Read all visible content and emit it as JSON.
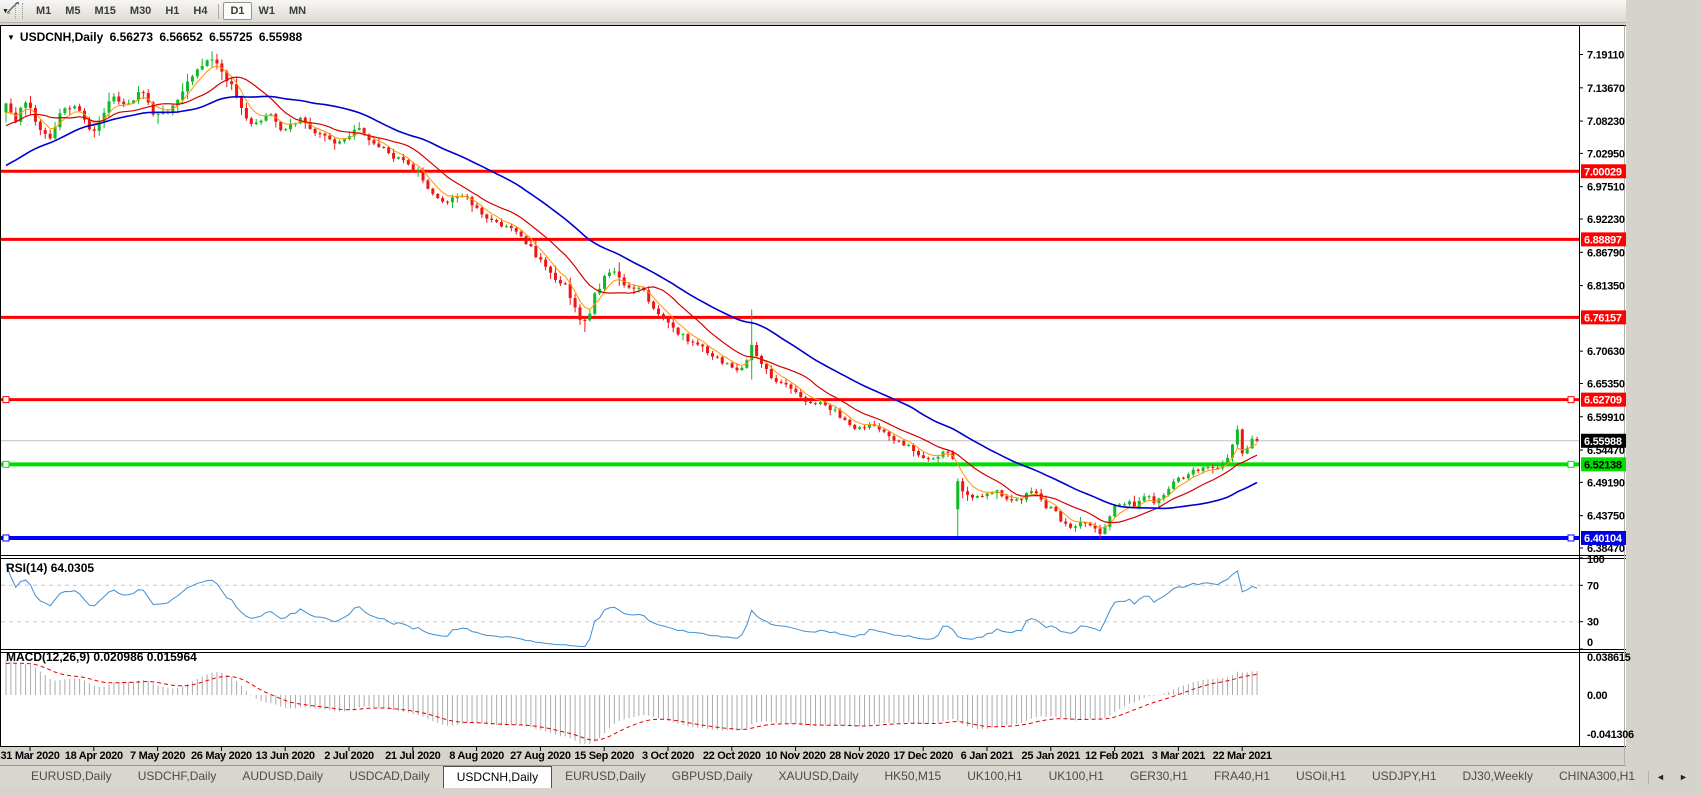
{
  "toolbar": {
    "timeframes": [
      "M1",
      "M5",
      "M15",
      "M30",
      "H1",
      "H4",
      "D1",
      "W1",
      "MN"
    ],
    "active": "D1",
    "chart_tool_icon": "chart-cursor-icon",
    "dropdown_caret": "▼"
  },
  "chart": {
    "symbol_title": "USDCNH,Daily",
    "title_arrow": "▼",
    "ohlc": {
      "open": "6.56273",
      "high": "6.56652",
      "low": "6.55725",
      "close": "6.55988"
    }
  },
  "price_axis": {
    "ticks": [
      "7.19110",
      "7.13670",
      "7.08230",
      "7.02950",
      "6.97510",
      "6.92230",
      "6.86790",
      "6.81350",
      "6.70630",
      "6.65350",
      "6.59910",
      "6.54470",
      "6.49190",
      "6.43750",
      "6.38470"
    ]
  },
  "hlines": [
    {
      "price": 7.00029,
      "label": "7.00029",
      "color": "#ff0000",
      "width": 3,
      "label_bg": "#ff0000",
      "label_fg": "#ffffff",
      "handles": false
    },
    {
      "price": 6.88897,
      "label": "6.88897",
      "color": "#ff0000",
      "width": 3,
      "label_bg": "#ff0000",
      "label_fg": "#ffffff",
      "handles": false
    },
    {
      "price": 6.76157,
      "label": "6.76157",
      "color": "#ff0000",
      "width": 3,
      "label_bg": "#ff0000",
      "label_fg": "#ffffff",
      "handles": false
    },
    {
      "price": 6.62709,
      "label": "6.62709",
      "color": "#ff0000",
      "width": 3,
      "label_bg": "#ff0000",
      "label_fg": "#ffffff",
      "handles": true
    },
    {
      "price": 6.52138,
      "label": "6.52138",
      "color": "#00dd00",
      "width": 4,
      "label_bg": "#00dd00",
      "label_fg": "#000000",
      "handles": true
    },
    {
      "price": 6.40104,
      "label": "6.40104",
      "color": "#0000ff",
      "width": 4,
      "label_bg": "#0000e0",
      "label_fg": "#ffffff",
      "handles": true
    }
  ],
  "current_price": {
    "value": 6.55988,
    "label": "6.55988",
    "line_color": "#c0c0c0",
    "label_bg": "#000000",
    "label_fg": "#ffffff"
  },
  "chart_data": {
    "type": "candlestick",
    "symbol": "USDCNH",
    "timeframe": "Daily",
    "seed": 7,
    "price_min": 6.37484,
    "price_max": 7.2377,
    "up_color": "#0fba26",
    "down_color": "#f01414",
    "close_anchors": [
      [
        -60,
        6.93
      ],
      [
        -45,
        6.95
      ],
      [
        -30,
        6.94
      ],
      [
        -20,
        6.97
      ],
      [
        -12,
        7.04
      ],
      [
        -6,
        7.075
      ],
      [
        -1,
        7.1
      ],
      [
        0,
        7.105
      ],
      [
        2,
        7.088
      ],
      [
        4,
        7.118
      ],
      [
        6,
        7.078
      ],
      [
        9,
        7.055
      ],
      [
        11,
        7.088
      ],
      [
        13,
        7.103
      ],
      [
        15,
        7.096
      ],
      [
        17,
        7.068
      ],
      [
        19,
        7.077
      ],
      [
        22,
        7.128
      ],
      [
        24,
        7.115
      ],
      [
        26,
        7.12
      ],
      [
        28,
        7.124
      ],
      [
        30,
        7.1
      ],
      [
        32,
        7.094
      ],
      [
        34,
        7.11
      ],
      [
        36,
        7.13
      ],
      [
        38,
        7.152
      ],
      [
        40,
        7.173
      ],
      [
        42,
        7.188
      ],
      [
        44,
        7.156
      ],
      [
        46,
        7.139
      ],
      [
        48,
        7.097
      ],
      [
        50,
        7.076
      ],
      [
        52,
        7.086
      ],
      [
        54,
        7.094
      ],
      [
        56,
        7.066
      ],
      [
        58,
        7.076
      ],
      [
        60,
        7.084
      ],
      [
        62,
        7.07
      ],
      [
        64,
        7.06
      ],
      [
        66,
        7.054
      ],
      [
        68,
        7.046
      ],
      [
        70,
        7.06
      ],
      [
        72,
        7.068
      ],
      [
        74,
        7.054
      ],
      [
        76,
        7.04
      ],
      [
        78,
        7.03
      ],
      [
        80,
        7.019
      ],
      [
        82,
        7.009
      ],
      [
        84,
        6.996
      ],
      [
        86,
        6.976
      ],
      [
        88,
        6.956
      ],
      [
        90,
        6.95
      ],
      [
        92,
        6.96
      ],
      [
        94,
        6.954
      ],
      [
        96,
        6.94
      ],
      [
        98,
        6.926
      ],
      [
        100,
        6.918
      ],
      [
        102,
        6.908
      ],
      [
        104,
        6.902
      ],
      [
        106,
        6.885
      ],
      [
        108,
        6.862
      ],
      [
        110,
        6.84
      ],
      [
        112,
        6.826
      ],
      [
        114,
        6.81
      ],
      [
        116,
        6.775
      ],
      [
        118,
        6.75
      ],
      [
        120,
        6.8
      ],
      [
        122,
        6.826
      ],
      [
        124,
        6.832
      ],
      [
        126,
        6.82
      ],
      [
        128,
        6.814
      ],
      [
        130,
        6.8
      ],
      [
        132,
        6.772
      ],
      [
        134,
        6.756
      ],
      [
        136,
        6.744
      ],
      [
        138,
        6.73
      ],
      [
        140,
        6.72
      ],
      [
        142,
        6.71
      ],
      [
        144,
        6.7
      ],
      [
        146,
        6.69
      ],
      [
        148,
        6.681
      ],
      [
        150,
        6.676
      ],
      [
        152,
        6.714
      ],
      [
        154,
        6.686
      ],
      [
        156,
        6.664
      ],
      [
        158,
        6.654
      ],
      [
        160,
        6.644
      ],
      [
        162,
        6.63
      ],
      [
        164,
        6.62
      ],
      [
        166,
        6.626
      ],
      [
        168,
        6.614
      ],
      [
        170,
        6.6
      ],
      [
        172,
        6.586
      ],
      [
        174,
        6.58
      ],
      [
        176,
        6.59
      ],
      [
        178,
        6.58
      ],
      [
        180,
        6.566
      ],
      [
        182,
        6.56
      ],
      [
        184,
        6.55
      ],
      [
        186,
        6.54
      ],
      [
        188,
        6.53
      ],
      [
        190,
        6.536
      ],
      [
        192,
        6.541
      ],
      [
        193,
        6.535
      ],
      [
        194,
        6.49
      ],
      [
        196,
        6.474
      ],
      [
        198,
        6.464
      ],
      [
        200,
        6.47
      ],
      [
        202,
        6.476
      ],
      [
        204,
        6.464
      ],
      [
        206,
        6.46
      ],
      [
        208,
        6.47
      ],
      [
        210,
        6.476
      ],
      [
        212,
        6.455
      ],
      [
        214,
        6.44
      ],
      [
        216,
        6.426
      ],
      [
        218,
        6.42
      ],
      [
        220,
        6.43
      ],
      [
        222,
        6.414
      ],
      [
        223,
        6.406
      ],
      [
        224,
        6.42
      ],
      [
        226,
        6.452
      ],
      [
        228,
        6.46
      ],
      [
        230,
        6.455
      ],
      [
        232,
        6.47
      ],
      [
        234,
        6.46
      ],
      [
        236,
        6.47
      ],
      [
        238,
        6.49
      ],
      [
        240,
        6.5
      ],
      [
        242,
        6.51
      ],
      [
        244,
        6.52
      ],
      [
        246,
        6.512
      ],
      [
        248,
        6.522
      ],
      [
        249,
        6.535
      ],
      [
        250,
        6.55
      ],
      [
        251,
        6.575
      ],
      [
        252,
        6.538
      ],
      [
        253,
        6.552
      ],
      [
        254,
        6.566
      ],
      [
        255,
        6.5599
      ]
    ],
    "specials": {
      "42": {
        "h": 7.1965
      },
      "118": {
        "l": 6.7375
      },
      "152": {
        "h": 6.7745,
        "l": 6.66
      },
      "194": {
        "o": 6.448,
        "l": 6.404
      },
      "223": {
        "l": 6.3995
      },
      "251": {
        "h": 6.585
      },
      "255": {
        "o": 6.56273,
        "h": 6.56652,
        "l": 6.55725,
        "c": 6.55988
      }
    },
    "vol_zones": [
      [
        0,
        50,
        1.6
      ],
      [
        50,
        112,
        1.0
      ],
      [
        112,
        136,
        1.5
      ],
      [
        136,
        192,
        0.85
      ],
      [
        192,
        226,
        1.15
      ],
      [
        226,
        256,
        0.9
      ]
    ],
    "moving_averages": [
      {
        "period": 5,
        "type": "ema",
        "color": "#ff9500",
        "width": 1
      },
      {
        "period": 13,
        "type": "sma",
        "color": "#d40000",
        "width": 1.2
      },
      {
        "period": 34,
        "type": "sma",
        "color": "#0000cd",
        "width": 1.6
      }
    ]
  },
  "rsi": {
    "name": "RSI",
    "params": "(14)",
    "value": "64.0305",
    "period": 14,
    "line_color": "#3f8fd4",
    "levels": [
      70,
      30
    ],
    "axis": [
      "100",
      "70",
      "30",
      "0"
    ]
  },
  "macd": {
    "name": "MACD",
    "params": "(12,26,9)",
    "value_main": "0.020986",
    "value_signal": "0.015964",
    "fast": 12,
    "slow": 26,
    "signal": 9,
    "bar_color": "#ababab",
    "signal_color": "#e00000",
    "axis": [
      "0.038615",
      "0.00",
      "-0.041306"
    ]
  },
  "date_axis": {
    "labels": [
      "31 Mar 2020",
      "18 Apr 2020",
      "7 May 2020",
      "26 May 2020",
      "13 Jun 2020",
      "2 Jul 2020",
      "21 Jul 2020",
      "8 Aug 2020",
      "27 Aug 2020",
      "15 Sep 2020",
      "3 Oct 2020",
      "22 Oct 2020",
      "10 Nov 2020",
      "28 Nov 2020",
      "17 Dec 2020",
      "6 Jan 2021",
      "25 Jan 2021",
      "12 Feb 2021",
      "3 Mar 2021",
      "22 Mar 2021"
    ]
  },
  "tabs": {
    "items": [
      "EURUSD,Daily",
      "USDCHF,Daily",
      "AUDUSD,Daily",
      "USDCAD,Daily",
      "USDCNH,Daily",
      "EURUSD,Daily",
      "GBPUSD,Daily",
      "XAUUSD,Daily",
      "HK50,M15",
      "UK100,H1",
      "UK100,H1",
      "GER30,H1",
      "FRA40,H1",
      "USOil,H1",
      "USDJPY,H1",
      "DJ30,Weekly",
      "CHINA300,H1"
    ],
    "active_index": 4,
    "left_arrow": "◄",
    "right_arrow": "►"
  }
}
